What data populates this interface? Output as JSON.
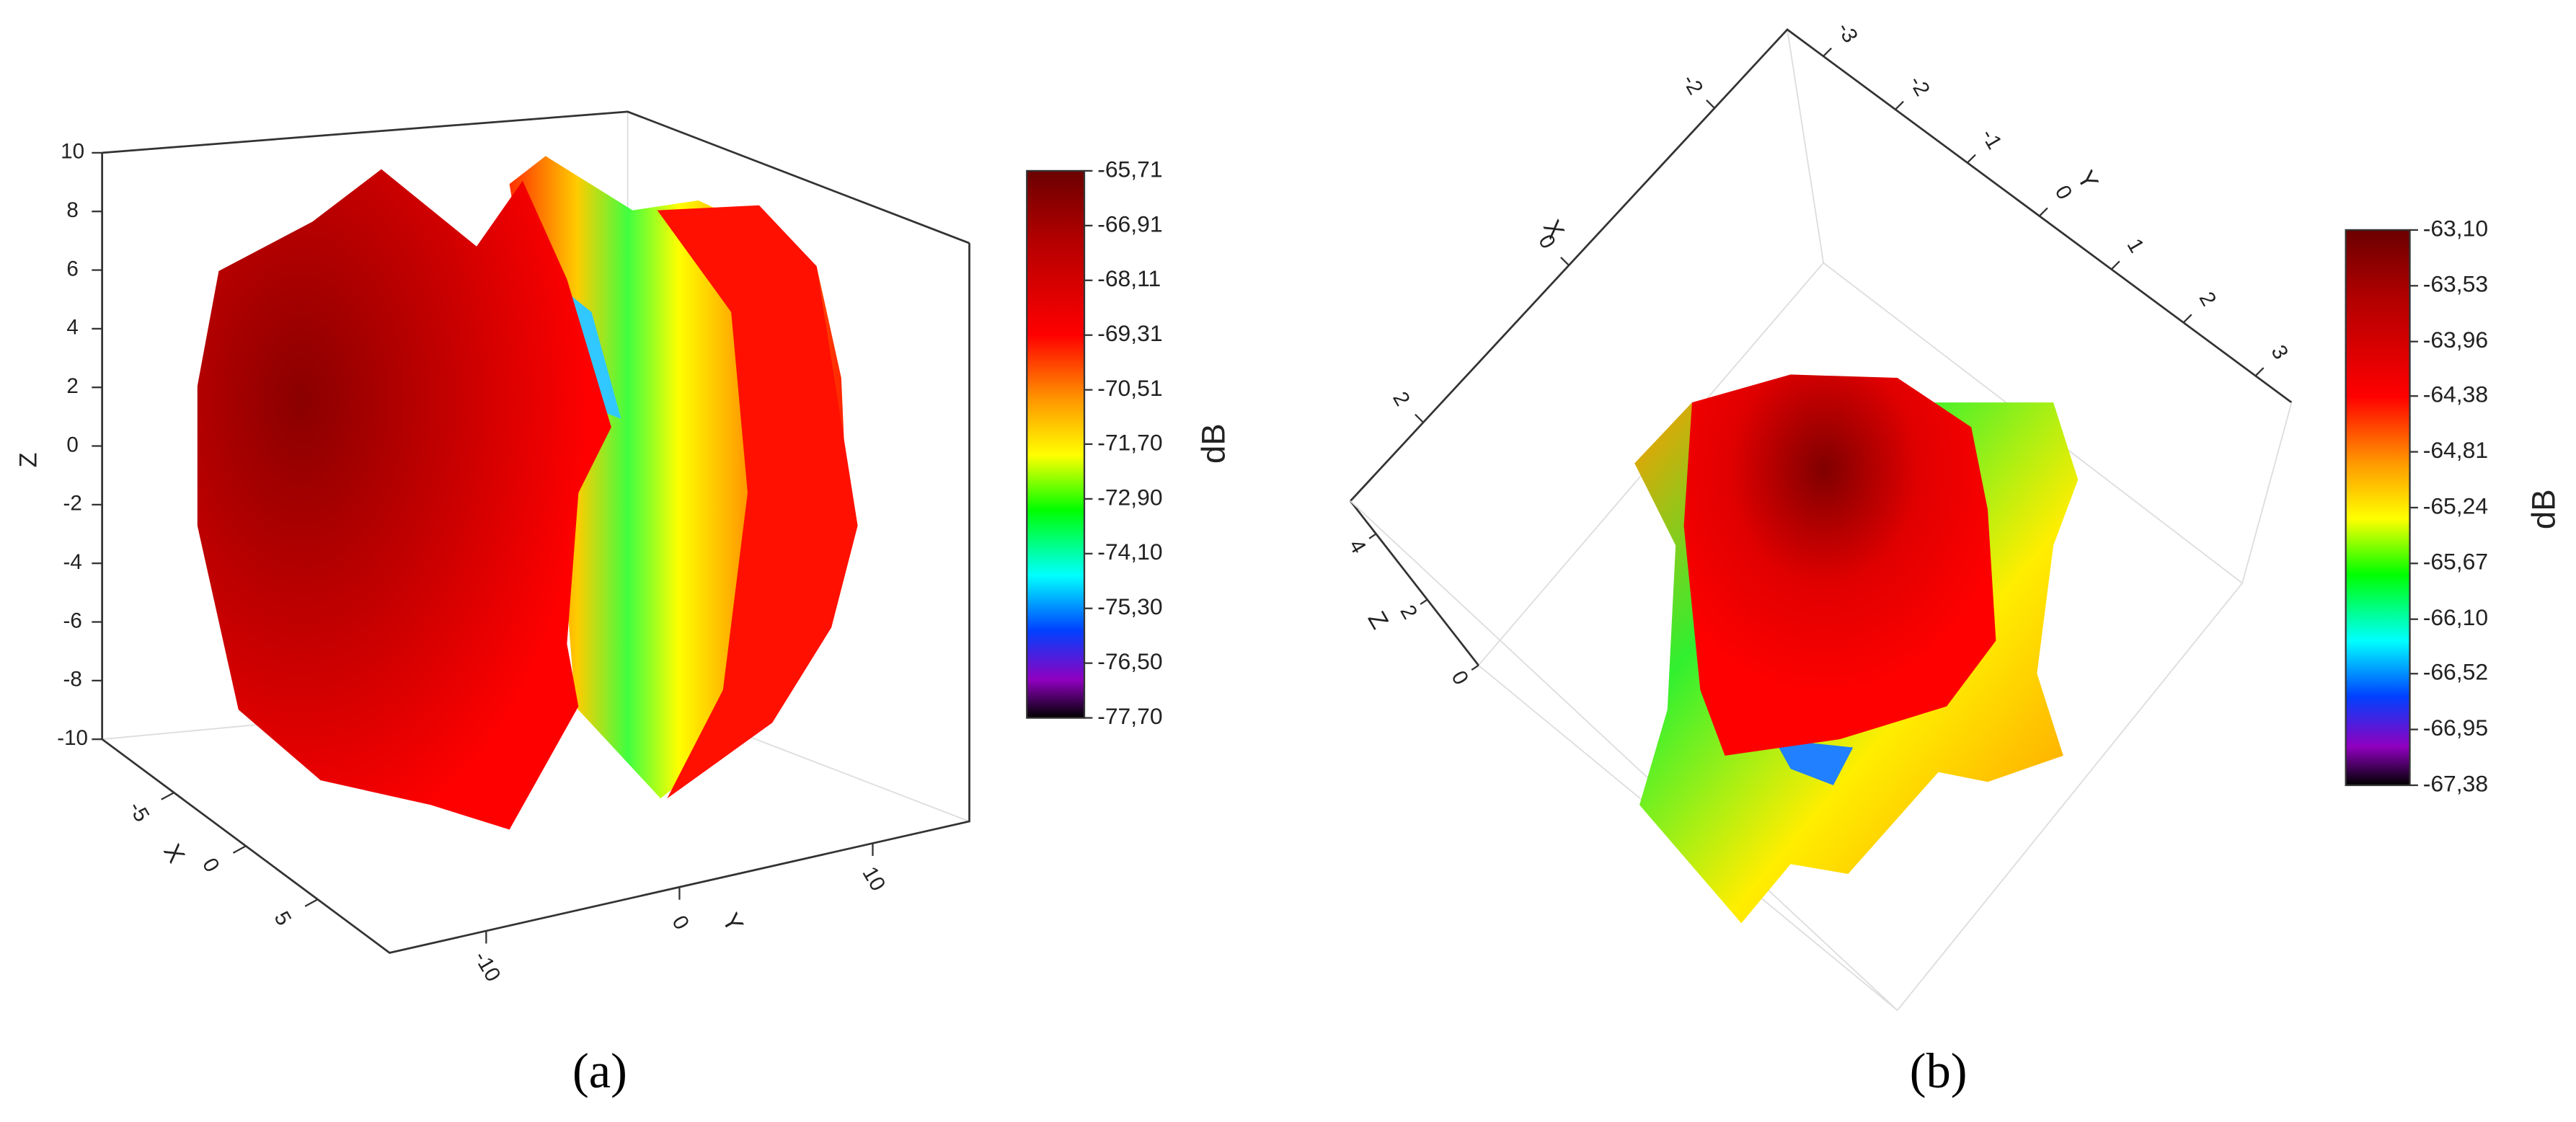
{
  "chart_data": [
    {
      "type": "surface3d",
      "xlabel": "X",
      "ylabel": "Y",
      "zlabel": "Z",
      "xlim": [
        -10,
        10
      ],
      "xticks": [
        -5,
        0,
        5
      ],
      "ylim": [
        -15,
        15
      ],
      "yticks": [
        -10,
        0,
        10
      ],
      "zlim": [
        -10,
        10
      ],
      "zticks": [
        -10,
        -8,
        -6,
        -4,
        -2,
        0,
        2,
        4,
        6,
        8,
        10
      ],
      "colorbar": {
        "label": "dB",
        "lim": [
          -77.7,
          -65.71
        ],
        "ticks": [
          {
            "value": -65.71,
            "label": "-65,71"
          },
          {
            "value": -66.91,
            "label": "-66,91"
          },
          {
            "value": -68.11,
            "label": "-68,11"
          },
          {
            "value": -69.31,
            "label": "-69,31"
          },
          {
            "value": -70.51,
            "label": "-70,51"
          },
          {
            "value": -71.7,
            "label": "-71,70"
          },
          {
            "value": -72.9,
            "label": "-72,90"
          },
          {
            "value": -74.1,
            "label": "-74,10"
          },
          {
            "value": -75.3,
            "label": "-75,30"
          },
          {
            "value": -76.5,
            "label": "-76,50"
          },
          {
            "value": -77.7,
            "label": "-77,70"
          }
        ]
      },
      "caption": "(a)"
    },
    {
      "type": "surface3d",
      "xlabel": "X",
      "ylabel": "Y",
      "zlabel": "Z",
      "xlim": [
        -3,
        3
      ],
      "xticks": [
        -2,
        0,
        2
      ],
      "ylim": [
        -3.5,
        3.5
      ],
      "yticks": [
        -3,
        -2,
        -1,
        0,
        1,
        2,
        3
      ],
      "zlim": [
        0,
        5
      ],
      "zticks": [
        0,
        2,
        4
      ],
      "colorbar": {
        "label": "dB",
        "lim": [
          -67.38,
          -63.1
        ],
        "ticks": [
          {
            "value": -63.1,
            "label": "-63,10"
          },
          {
            "value": -63.53,
            "label": "-63,53"
          },
          {
            "value": -63.96,
            "label": "-63,96"
          },
          {
            "value": -64.38,
            "label": "-64,38"
          },
          {
            "value": -64.81,
            "label": "-64,81"
          },
          {
            "value": -65.24,
            "label": "-65,24"
          },
          {
            "value": -65.67,
            "label": "-65,67"
          },
          {
            "value": -66.1,
            "label": "-66,10"
          },
          {
            "value": -66.52,
            "label": "-66,52"
          },
          {
            "value": -66.95,
            "label": "-66,95"
          },
          {
            "value": -67.38,
            "label": "-67,38"
          }
        ]
      },
      "caption": "(b)"
    }
  ]
}
